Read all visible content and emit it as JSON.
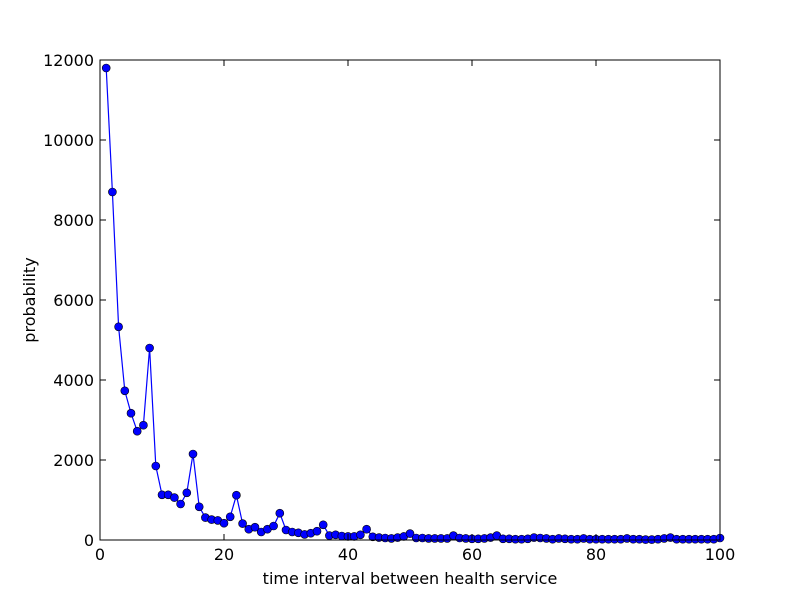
{
  "chart_data": {
    "type": "line",
    "xlabel": "time interval between health service",
    "ylabel": "probability",
    "xlim": [
      0,
      100
    ],
    "ylim": [
      0,
      12000
    ],
    "x_ticks": [
      0,
      20,
      40,
      60,
      80,
      100
    ],
    "y_ticks": [
      0,
      2000,
      4000,
      6000,
      8000,
      10000,
      12000
    ],
    "grid": false,
    "legend": "none",
    "line_color": "#0000ff",
    "marker": "circle",
    "series": [
      {
        "x": [
          1,
          2,
          3,
          4,
          5,
          6,
          7,
          8,
          9,
          10,
          11,
          12,
          13,
          14,
          15,
          16,
          17,
          18,
          19,
          20,
          21,
          22,
          23,
          24,
          25,
          26,
          27,
          28,
          29,
          30,
          31,
          32,
          33,
          34,
          35,
          36,
          37,
          38,
          39,
          40,
          41,
          42,
          43,
          44,
          45,
          46,
          47,
          48,
          49,
          50,
          51,
          52,
          53,
          54,
          55,
          56,
          57,
          58,
          59,
          60,
          61,
          62,
          63,
          64,
          65,
          66,
          67,
          68,
          69,
          70,
          71,
          72,
          73,
          74,
          75,
          76,
          77,
          78,
          79,
          80,
          81,
          82,
          83,
          84,
          85,
          86,
          87,
          88,
          89,
          90,
          91,
          92,
          93,
          94,
          95,
          96,
          97,
          98,
          99,
          100
        ],
        "y": [
          11800,
          8700,
          5330,
          3730,
          3170,
          2720,
          2870,
          4800,
          1850,
          1130,
          1130,
          1060,
          900,
          1180,
          2150,
          830,
          560,
          510,
          490,
          420,
          580,
          1120,
          410,
          270,
          320,
          200,
          270,
          350,
          670,
          250,
          200,
          180,
          140,
          170,
          220,
          380,
          110,
          130,
          100,
          90,
          90,
          130,
          270,
          80,
          60,
          50,
          40,
          60,
          90,
          160,
          50,
          50,
          40,
          40,
          40,
          40,
          110,
          50,
          40,
          30,
          30,
          40,
          60,
          110,
          30,
          30,
          20,
          20,
          30,
          60,
          50,
          40,
          20,
          40,
          30,
          20,
          20,
          40,
          20,
          20,
          20,
          20,
          20,
          20,
          40,
          20,
          20,
          10,
          10,
          20,
          40,
          60,
          20,
          20,
          20,
          20,
          20,
          20,
          20,
          50
        ]
      }
    ]
  }
}
